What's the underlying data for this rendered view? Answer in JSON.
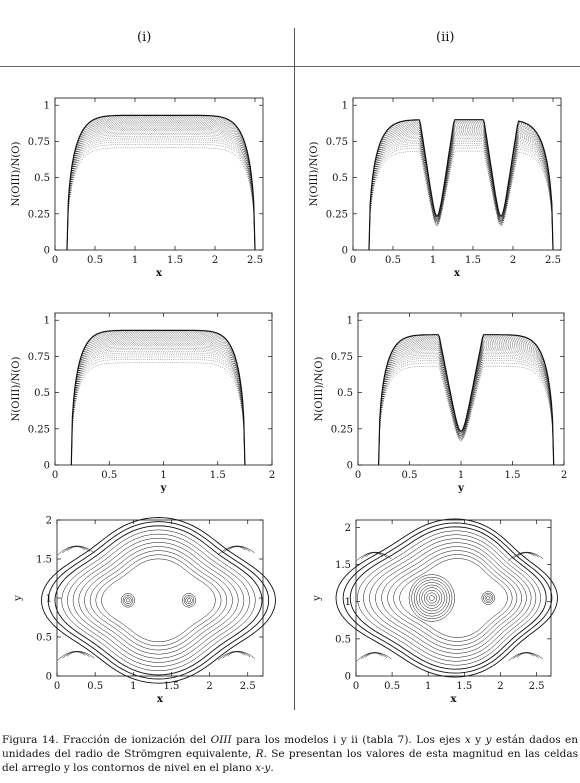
{
  "columns": [
    "(i)",
    "(ii)"
  ],
  "caption": {
    "lead": "Figura 14. Fracción de ionización del ",
    "species": "OIII",
    "part2": " para los modelos i y ii (tabla 7). Los ejes ",
    "x": "x",
    "part3": " y ",
    "y": "y",
    "part4": " están dados en unidades del radio de Strömgren equivalente, ",
    "R": "R",
    "part5": ". Se presentan los valores de esta magnitud en las celdas del arreglo y los contornos de nivel en el plano ",
    "plane": "x-y",
    "end": "."
  },
  "chart_data": [
    {
      "id": "i-x",
      "type": "scatter",
      "xlabel": "x",
      "ylabel": "N(OIII)/N(O)",
      "xlim": [
        0,
        2.6
      ],
      "ylim": [
        0,
        1.05
      ],
      "xticks": [
        "0",
        "0.5",
        "1",
        "1.5",
        "2",
        "2.5"
      ],
      "yticks": [
        "0",
        "0.25",
        "0.5",
        "0.75",
        "1"
      ],
      "profile": {
        "x0": 0.15,
        "x1": 2.5,
        "plateau": 0.93,
        "dips": []
      }
    },
    {
      "id": "ii-x",
      "type": "scatter",
      "xlabel": "x",
      "ylabel": "N(OIII)/N(O)",
      "xlim": [
        0,
        2.6
      ],
      "ylim": [
        0,
        1.05
      ],
      "xticks": [
        "0",
        "0.5",
        "1",
        "1.5",
        "2",
        "2.5"
      ],
      "yticks": [
        "0",
        "0.25",
        "0.5",
        "0.75",
        "1"
      ],
      "profile": {
        "x0": 0.2,
        "x1": 2.5,
        "plateau": 0.9,
        "dips": [
          1.05,
          1.85
        ]
      }
    },
    {
      "id": "i-y",
      "type": "scatter",
      "xlabel": "y",
      "ylabel": "N(OIII)/N(O)",
      "xlim": [
        0,
        2
      ],
      "ylim": [
        0,
        1.05
      ],
      "xticks": [
        "0",
        "0.5",
        "1",
        "1.5",
        "2"
      ],
      "yticks": [
        "0",
        "0.25",
        "0.5",
        "0.75",
        "1"
      ],
      "profile": {
        "x0": 0.15,
        "x1": 1.75,
        "plateau": 0.93,
        "dips": []
      }
    },
    {
      "id": "ii-y",
      "type": "scatter",
      "xlabel": "y",
      "ylabel": "N(OIII)/N(O)",
      "xlim": [
        0,
        2
      ],
      "ylim": [
        0,
        1.05
      ],
      "xticks": [
        "0",
        "0.5",
        "1",
        "1.5",
        "2"
      ],
      "yticks": [
        "0",
        "0.25",
        "0.5",
        "0.75",
        "1"
      ],
      "profile": {
        "x0": 0.2,
        "x1": 1.9,
        "plateau": 0.9,
        "dips": [
          1.0
        ]
      }
    },
    {
      "id": "i-xy",
      "type": "contour",
      "xlabel": "x",
      "ylabel": "y",
      "xlim": [
        0,
        2.7
      ],
      "ylim": [
        0,
        2
      ],
      "xticks": [
        "0",
        "0.5",
        "1",
        "1.5",
        "2",
        "2.5"
      ],
      "yticks": [
        "0",
        "0.5",
        "1",
        "1.5",
        "2"
      ],
      "sources": [
        [
          0.93,
          0.97
        ],
        [
          1.73,
          0.97
        ]
      ]
    },
    {
      "id": "ii-xy",
      "type": "contour",
      "xlabel": "x",
      "ylabel": "y",
      "xlim": [
        0,
        2.7
      ],
      "ylim": [
        0,
        2.1
      ],
      "xticks": [
        "0",
        "0.5",
        "1",
        "1.5",
        "2",
        "2.5"
      ],
      "yticks": [
        "0",
        "0.5",
        "1",
        "1.5",
        "2"
      ],
      "sources": [
        [
          1.05,
          1.05
        ],
        [
          1.83,
          1.05
        ]
      ]
    }
  ]
}
